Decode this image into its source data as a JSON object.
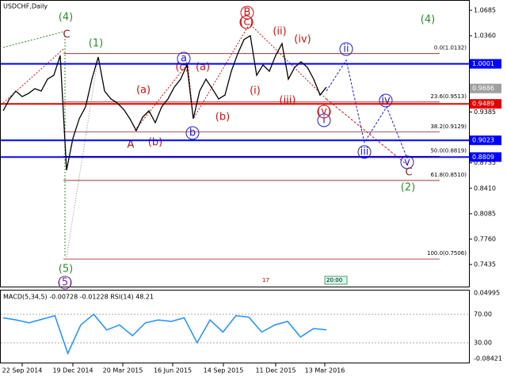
{
  "chart_data": {
    "type": "line",
    "title": "USDCHF,Daily",
    "ylim": [
      0.7153,
      1.0817
    ],
    "yticks": [
      1.0685,
      {
        "value": 1.036,
        "label": "1.0360"
      },
      0.9385,
      0.8735,
      {
        "value": 0.841,
        "label": "0.8410"
      },
      0.8085,
      {
        "value": 0.776,
        "label": "0.7760"
      },
      0.7435
    ],
    "x_labels": [
      "22 Sep 2014",
      "19 Dec 2014",
      "20 Mar 2015",
      "16 Jun 2015",
      "14 Sep 2015",
      "11 Dec 2015",
      "13 Mar 2016"
    ],
    "color": "#000000",
    "values": [
      0.94,
      0.9552,
      0.9653,
      0.9582,
      0.9622,
      0.9683,
      0.9653,
      0.9805,
      0.9855,
      1.0108,
      0.8641,
      0.9046,
      0.9299,
      0.945,
      0.9805,
      1.0088,
      0.9653,
      0.9552,
      0.9501,
      0.942,
      0.9299,
      0.9147,
      0.9319,
      0.94,
      0.9248,
      0.945,
      0.9552,
      0.9703,
      0.9805,
      0.9987,
      0.9299,
      0.9653,
      0.9805,
      0.9683,
      0.9552,
      0.9602,
      0.9906,
      1.0128,
      1.0311,
      1.0361,
      0.9855,
      0.9987,
      0.9906,
      1.0108,
      1.026,
      0.9805,
      0.9956,
      1.0027,
      0.9956,
      0.9805,
      0.9602,
      0.9703
    ],
    "levels": [
      {
        "value": 1.0001,
        "color": "#0000ff"
      },
      {
        "value": 0.9489,
        "color": "#e00000"
      },
      {
        "value": 0.9023,
        "color": "#0000ff"
      },
      {
        "value": 0.8809,
        "color": "#0000ff"
      },
      {
        "value": 0.9686,
        "color": "#a0a0a0"
      }
    ],
    "fib": [
      {
        "label": "0.0(1.0132)",
        "value": 1.0132
      },
      {
        "label": "23.6(0.9513)",
        "value": 0.9513
      },
      {
        "label": "38.2(0.9129)",
        "value": 0.9129
      },
      {
        "label": "50.0(0.8819)",
        "value": 0.8819
      },
      {
        "label": "61.8(0.8510)",
        "value": 0.851
      },
      {
        "label": "100.0(0.7506)",
        "value": 0.7506
      }
    ],
    "waves": [
      "(4)",
      "C",
      "(1)",
      "(4)",
      "(2)",
      "(5)",
      "(5)",
      "(a)",
      "(c)",
      "(a)",
      "(b)",
      "(i)",
      "(ii)",
      "(iii)",
      "(iv)",
      "A",
      "(b)",
      "B",
      "(c)",
      "a",
      "b",
      "ii",
      "iv",
      "i",
      "iii",
      "v",
      "C",
      "(v)"
    ],
    "markers": [
      "17",
      "20:00"
    ],
    "indicator": {
      "title": "MACD(5,34,5) -0.00728 -0.01228 RSI(14) 48.21",
      "macd_range": [
        -0.08421,
        0.04995
      ],
      "ylim": [
        2.2,
        103.3
      ],
      "yticks": [
        {
          "value": 70,
          "label": "70.00"
        },
        {
          "value": 30,
          "label": "30.00"
        }
      ],
      "color": "#1e90ff",
      "values": [
        65,
        62,
        58,
        63,
        68,
        15,
        55,
        70,
        48,
        55,
        40,
        58,
        62,
        60,
        65,
        30,
        62,
        45,
        68,
        66,
        45,
        55,
        60,
        38,
        50,
        48.21
      ]
    }
  }
}
